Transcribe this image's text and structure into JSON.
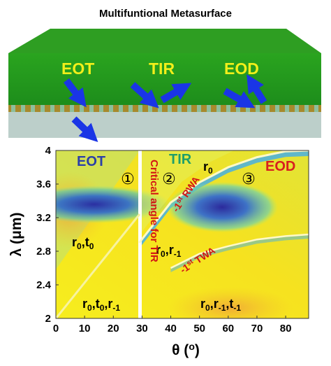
{
  "figure": {
    "title": "Multifuntional Metasurface",
    "device_labels": {
      "eot": "EOT",
      "tir": "TIR",
      "eod": "EOD"
    },
    "colors": {
      "green_top": "#2a9a1f",
      "green_front": "#1f8f1c",
      "gold": "#a6892a",
      "substrate": "#b9cfcb",
      "arrow": "#1a35e6",
      "label_yellow": "#f2ef1a",
      "map_yellow": "#f3e320",
      "region_blue": "#2a3fa8",
      "region_green": "#1f9e6a",
      "region_red": "#d81f1f",
      "annot_red": "#d21414"
    }
  },
  "chart_data": {
    "type": "heatmap",
    "title": "",
    "xlabel": "θ (º)",
    "ylabel": "λ (μm)",
    "xlim": [
      0,
      88
    ],
    "ylim": [
      2,
      4
    ],
    "x_ticks": [
      "0",
      "10",
      "20",
      "30",
      "40",
      "50",
      "60",
      "70",
      "80"
    ],
    "y_ticks": [
      "2",
      "2.4",
      "2.8",
      "3.2",
      "3.6",
      "4"
    ],
    "regions": [
      {
        "marker": "①",
        "name": "EOT",
        "color": "#2a3fa8"
      },
      {
        "marker": "②",
        "name": "TIR",
        "color": "#1f9e6a"
      },
      {
        "marker": "③",
        "name": "EOD",
        "color": "#d81f1f"
      }
    ],
    "channel_labels": {
      "r0": "r0",
      "r0_t0": "r0,t0",
      "r0_t0_r-1": "r0,t0,r-1",
      "r0_r-1": "r0,r-1",
      "r0_r-1_t-1": "r0,r-1,t-1"
    },
    "annotations": {
      "critical": "Critical angle for TIR",
      "rwa": "-1st RWA",
      "twa": "-1st TWA"
    },
    "critical_angle_deg": 29,
    "rwa_curve": {
      "x": [
        29,
        40,
        50,
        60,
        70,
        80,
        88
      ],
      "y": [
        2.9,
        3.38,
        3.62,
        3.8,
        3.92,
        3.99,
        4.0
      ]
    },
    "twa_curve": {
      "x": [
        40,
        50,
        60,
        70,
        80,
        88
      ],
      "y": [
        2.6,
        2.77,
        2.86,
        2.94,
        2.98,
        3.0
      ]
    }
  }
}
